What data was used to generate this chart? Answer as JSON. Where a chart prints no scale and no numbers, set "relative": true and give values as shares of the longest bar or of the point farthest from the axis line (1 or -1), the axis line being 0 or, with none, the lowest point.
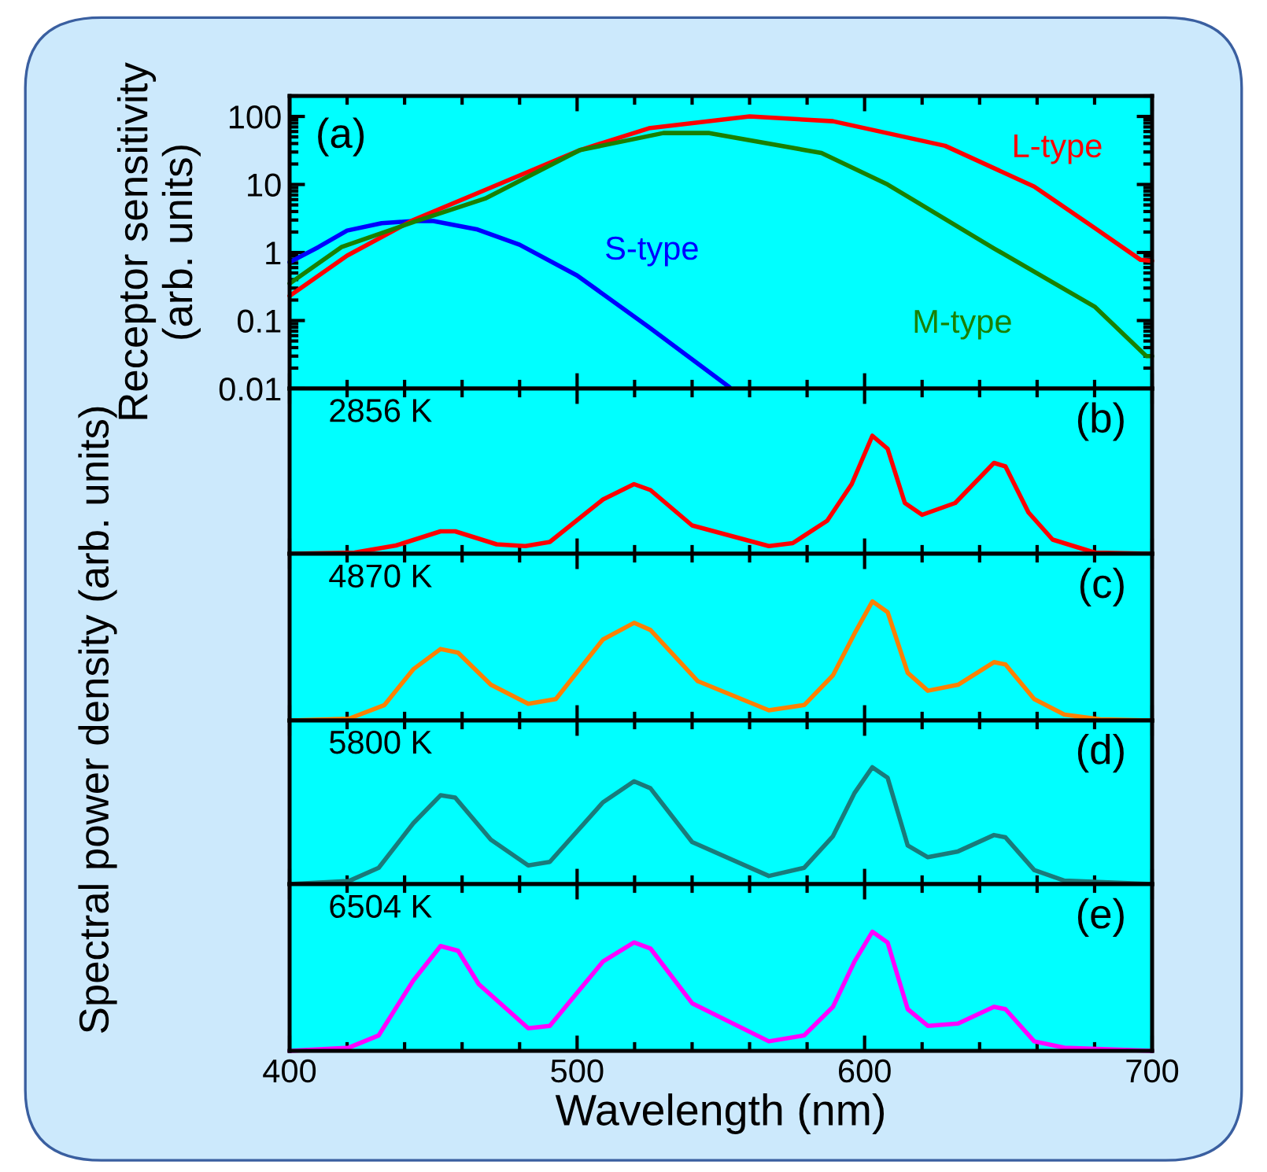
{
  "chart_data": [
    {
      "type": "line",
      "ylabel": "Receptor sensitivity\n(arb. units)",
      "annotations": [
        "(a)"
      ],
      "log": "y",
      "xlim": [
        400,
        700
      ],
      "xticks": [
        400,
        500,
        600,
        700
      ],
      "ylim": [
        0.01,
        200
      ],
      "yticks": [
        0.01,
        0.1,
        1,
        10,
        100
      ],
      "tick_labels": "y",
      "grid": false,
      "legend": false,
      "marker": "none",
      "line_style": "solid",
      "series": [
        {
          "name": "S-type",
          "color": "#0000ff",
          "x": [
            400,
            410,
            420,
            432,
            443,
            450,
            465,
            480,
            500,
            525,
            553
          ],
          "values": [
            0.72,
            1.2,
            2.1,
            2.7,
            2.9,
            2.9,
            2.2,
            1.3,
            0.46,
            0.08,
            0.0105
          ]
        },
        {
          "name": "L-type",
          "color": "#ff0000",
          "x": [
            400,
            420,
            443,
            468,
            501,
            525,
            560,
            589,
            628,
            659,
            680,
            696,
            700
          ],
          "values": [
            0.23,
            0.9,
            3,
            8.3,
            32,
            67,
            100,
            85,
            37,
            9.3,
            2.3,
            0.78,
            0.75
          ]
        },
        {
          "name": "M-type",
          "color": "#1a8000",
          "x": [
            400,
            418,
            443,
            468,
            501,
            530,
            546,
            585,
            608,
            645,
            680,
            698,
            700
          ],
          "values": [
            0.35,
            1.2,
            2.8,
            6.2,
            32,
            57,
            57,
            29,
            10,
            1.15,
            0.16,
            0.03,
            0.03
          ]
        }
      ]
    },
    {
      "type": "line",
      "relative": true,
      "ylabel": "Spectral power density (arb. units)",
      "annotations": [
        "2856 K",
        "(b)"
      ],
      "xlim": [
        400,
        700
      ],
      "xticks": [
        400,
        500,
        600,
        700
      ],
      "tick_labels": false,
      "grid": false,
      "legend": false,
      "marker": "none",
      "line_style": "solid",
      "series": [
        {
          "color": "#ff0000",
          "x": [
            400,
            422.6,
            437,
            452.5,
            457.6,
            472,
            482,
            490.5,
            509,
            519.8,
            525.5,
            540,
            566.7,
            575,
            587,
            595.5,
            602.7,
            608,
            614,
            620,
            631.5,
            645,
            649,
            657,
            665.4,
            680,
            700
          ],
          "values": [
            0,
            0.01,
            0.07,
            0.19,
            0.19,
            0.08,
            0.065,
            0.1,
            0.46,
            0.59,
            0.54,
            0.24,
            0.065,
            0.09,
            0.28,
            0.59,
            1,
            0.89,
            0.43,
            0.33,
            0.43,
            0.77,
            0.74,
            0.35,
            0.12,
            0.01,
            0
          ]
        }
      ]
    },
    {
      "type": "line",
      "relative": true,
      "annotations": [
        "4870 K",
        "(c)"
      ],
      "xlim": [
        400,
        700
      ],
      "xticks": [
        400,
        500,
        600,
        700
      ],
      "tick_labels": false,
      "grid": false,
      "legend": false,
      "marker": "none",
      "line_style": "solid",
      "series": [
        {
          "color": "#ff8000",
          "x": [
            400,
            420.6,
            433,
            443,
            452.5,
            458.6,
            470,
            483,
            492.6,
            509,
            519.8,
            525.5,
            542,
            566.7,
            579,
            589,
            596.5,
            602.7,
            608,
            615,
            622,
            632.5,
            645,
            649,
            659,
            669.5,
            682,
            700
          ],
          "values": [
            0,
            0.015,
            0.13,
            0.43,
            0.6,
            0.57,
            0.3,
            0.14,
            0.18,
            0.68,
            0.82,
            0.76,
            0.33,
            0.086,
            0.13,
            0.38,
            0.73,
            1,
            0.91,
            0.4,
            0.25,
            0.3,
            0.49,
            0.47,
            0.18,
            0.05,
            0.01,
            0
          ]
        }
      ]
    },
    {
      "type": "line",
      "relative": true,
      "annotations": [
        "5800 K",
        "(d)"
      ],
      "xlim": [
        400,
        700
      ],
      "xticks": [
        400,
        500,
        600,
        700
      ],
      "tick_labels": false,
      "grid": false,
      "legend": false,
      "marker": "none",
      "line_style": "solid",
      "series": [
        {
          "color": "#1a7a7a",
          "x": [
            400,
            420.6,
            431,
            443,
            452.5,
            457.6,
            470,
            483,
            490.5,
            509,
            519.8,
            525.5,
            540,
            566.7,
            579,
            589,
            596.5,
            602.7,
            608,
            615,
            622,
            632.5,
            645,
            649,
            659,
            669.5,
            700
          ],
          "values": [
            0,
            0.026,
            0.14,
            0.52,
            0.76,
            0.74,
            0.38,
            0.16,
            0.19,
            0.7,
            0.88,
            0.82,
            0.36,
            0.07,
            0.14,
            0.41,
            0.78,
            1,
            0.91,
            0.33,
            0.23,
            0.28,
            0.42,
            0.4,
            0.12,
            0.03,
            0
          ]
        }
      ]
    },
    {
      "type": "line",
      "relative": true,
      "xlabel": "Wavelength (nm)",
      "annotations": [
        "6504 K",
        "(e)"
      ],
      "xlim": [
        400,
        700
      ],
      "xticks": [
        400,
        500,
        600,
        700
      ],
      "tick_labels": "x",
      "grid": false,
      "legend": false,
      "marker": "none",
      "line_style": "solid",
      "series": [
        {
          "color": "#ff00ff",
          "x": [
            400,
            420.6,
            431,
            443,
            452.5,
            458.6,
            465.8,
            483,
            490.5,
            509,
            519.8,
            525.5,
            540,
            566.7,
            579,
            589,
            596.5,
            602.7,
            608,
            615,
            622,
            632.5,
            645,
            649,
            659,
            669.5,
            700
          ],
          "values": [
            0,
            0.027,
            0.13,
            0.59,
            0.88,
            0.84,
            0.56,
            0.19,
            0.21,
            0.75,
            0.91,
            0.86,
            0.4,
            0.08,
            0.13,
            0.37,
            0.75,
            1,
            0.91,
            0.35,
            0.21,
            0.23,
            0.37,
            0.35,
            0.08,
            0.027,
            0
          ]
        }
      ]
    }
  ]
}
